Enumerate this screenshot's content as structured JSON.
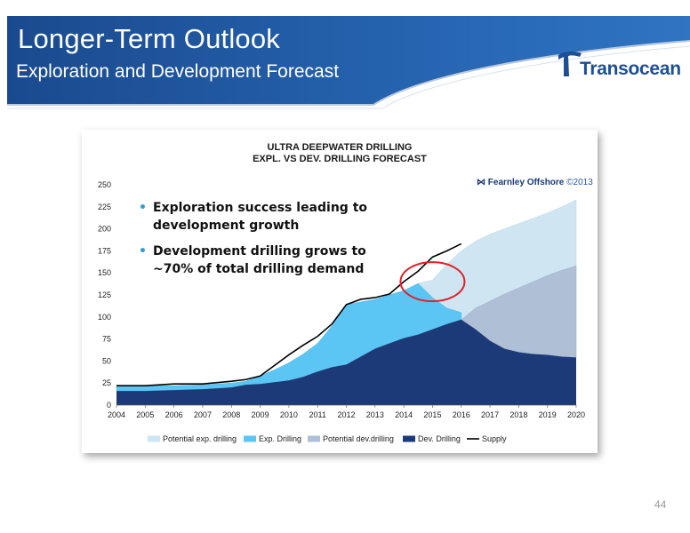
{
  "slide": {
    "title": "Longer-Term Outlook",
    "subtitle": "Exploration and Development Forecast",
    "logo_text": "Transocean",
    "page_number": "44"
  },
  "colors": {
    "header_blue": "#1c4f96",
    "potential_exp": "#cfe6f2",
    "exp_drilling": "#5bc6f3",
    "potential_dev": "#aebfd6",
    "dev_drilling": "#1d3a78",
    "supply": "#000000",
    "highlight_circle": "#e0202a"
  },
  "annotations": {
    "bullets": [
      "Exploration success leading to development growth",
      "Development drilling grows to ~70% of total drilling demand"
    ],
    "source": "Fearnley Offshore",
    "copyright": "©2013"
  },
  "chart_data": {
    "type": "area",
    "title": "ULTRA DEEPWATER DRILLING",
    "subtitle": "EXPL. VS DEV. DRILLING FORECAST",
    "xlabel": "",
    "ylabel": "",
    "x_ticks": [
      "2004",
      "2005",
      "2006",
      "2007",
      "2008",
      "2009",
      "2010",
      "2011",
      "2012",
      "2013",
      "2014",
      "2015",
      "2016",
      "2017",
      "2018",
      "2019",
      "2020"
    ],
    "y_ticks": [
      0,
      25,
      50,
      75,
      100,
      125,
      150,
      175,
      200,
      225,
      250
    ],
    "xlim": [
      2004,
      2020
    ],
    "ylim": [
      0,
      250
    ],
    "legend_position": "bottom",
    "legend": [
      "Potential exp. drilling",
      "Exp. Drilling",
      "Potential dev.drilling",
      "Dev. Drilling",
      "Supply"
    ],
    "series": [
      {
        "name": "Dev. Drilling",
        "type": "area",
        "x": [
          2004,
          2005,
          2006,
          2007,
          2008,
          2008.5,
          2009,
          2009.5,
          2010,
          2010.5,
          2011,
          2011.5,
          2012,
          2012.5,
          2013,
          2013.5,
          2014,
          2014.5,
          2015,
          2015.5,
          2016,
          2016.5,
          2017,
          2017.5,
          2018,
          2018.5,
          2019,
          2019.5,
          2020
        ],
        "y": [
          16,
          16,
          17,
          18,
          20,
          23,
          24,
          26,
          28,
          32,
          38,
          43,
          46,
          55,
          64,
          70,
          76,
          80,
          86,
          92,
          97,
          86,
          73,
          64,
          60,
          58,
          57,
          55,
          54
        ]
      },
      {
        "name": "Exp. Drilling",
        "type": "area",
        "x": [
          2004,
          2005,
          2006,
          2007,
          2008,
          2008.5,
          2009,
          2009.5,
          2010,
          2010.5,
          2011,
          2011.5,
          2012,
          2012.5,
          2013,
          2013.5,
          2014,
          2014.5,
          2015,
          2015.5,
          2016
        ],
        "y": [
          22,
          22,
          22,
          23,
          25,
          27,
          33,
          40,
          48,
          58,
          70,
          90,
          114,
          117,
          120,
          125,
          130,
          138,
          122,
          110,
          105
        ]
      },
      {
        "name": "Potential dev.drilling",
        "type": "area",
        "x": [
          2016,
          2016.5,
          2017,
          2017.5,
          2018,
          2018.5,
          2019,
          2019.5,
          2020
        ],
        "y": [
          97,
          110,
          118,
          126,
          133,
          140,
          147,
          153,
          158
        ]
      },
      {
        "name": "Potential exp. drilling",
        "type": "area",
        "x": [
          2014.5,
          2015,
          2015.5,
          2016,
          2016.5,
          2017,
          2017.5,
          2018,
          2018.5,
          2019,
          2019.5,
          2020
        ],
        "y": [
          138,
          142,
          160,
          175,
          186,
          194,
          200,
          206,
          212,
          218,
          225,
          233
        ]
      },
      {
        "name": "Supply",
        "type": "line",
        "x": [
          2004,
          2005,
          2006,
          2007,
          2008,
          2008.5,
          2009,
          2009.5,
          2010,
          2010.5,
          2011,
          2011.5,
          2012,
          2012.5,
          2013,
          2013.5,
          2014,
          2014.5,
          2015,
          2015.5,
          2016
        ],
        "y": [
          22,
          22,
          24,
          24,
          27,
          29,
          33,
          45,
          57,
          68,
          78,
          92,
          114,
          120,
          122,
          126,
          140,
          152,
          168,
          175,
          183
        ]
      }
    ]
  }
}
